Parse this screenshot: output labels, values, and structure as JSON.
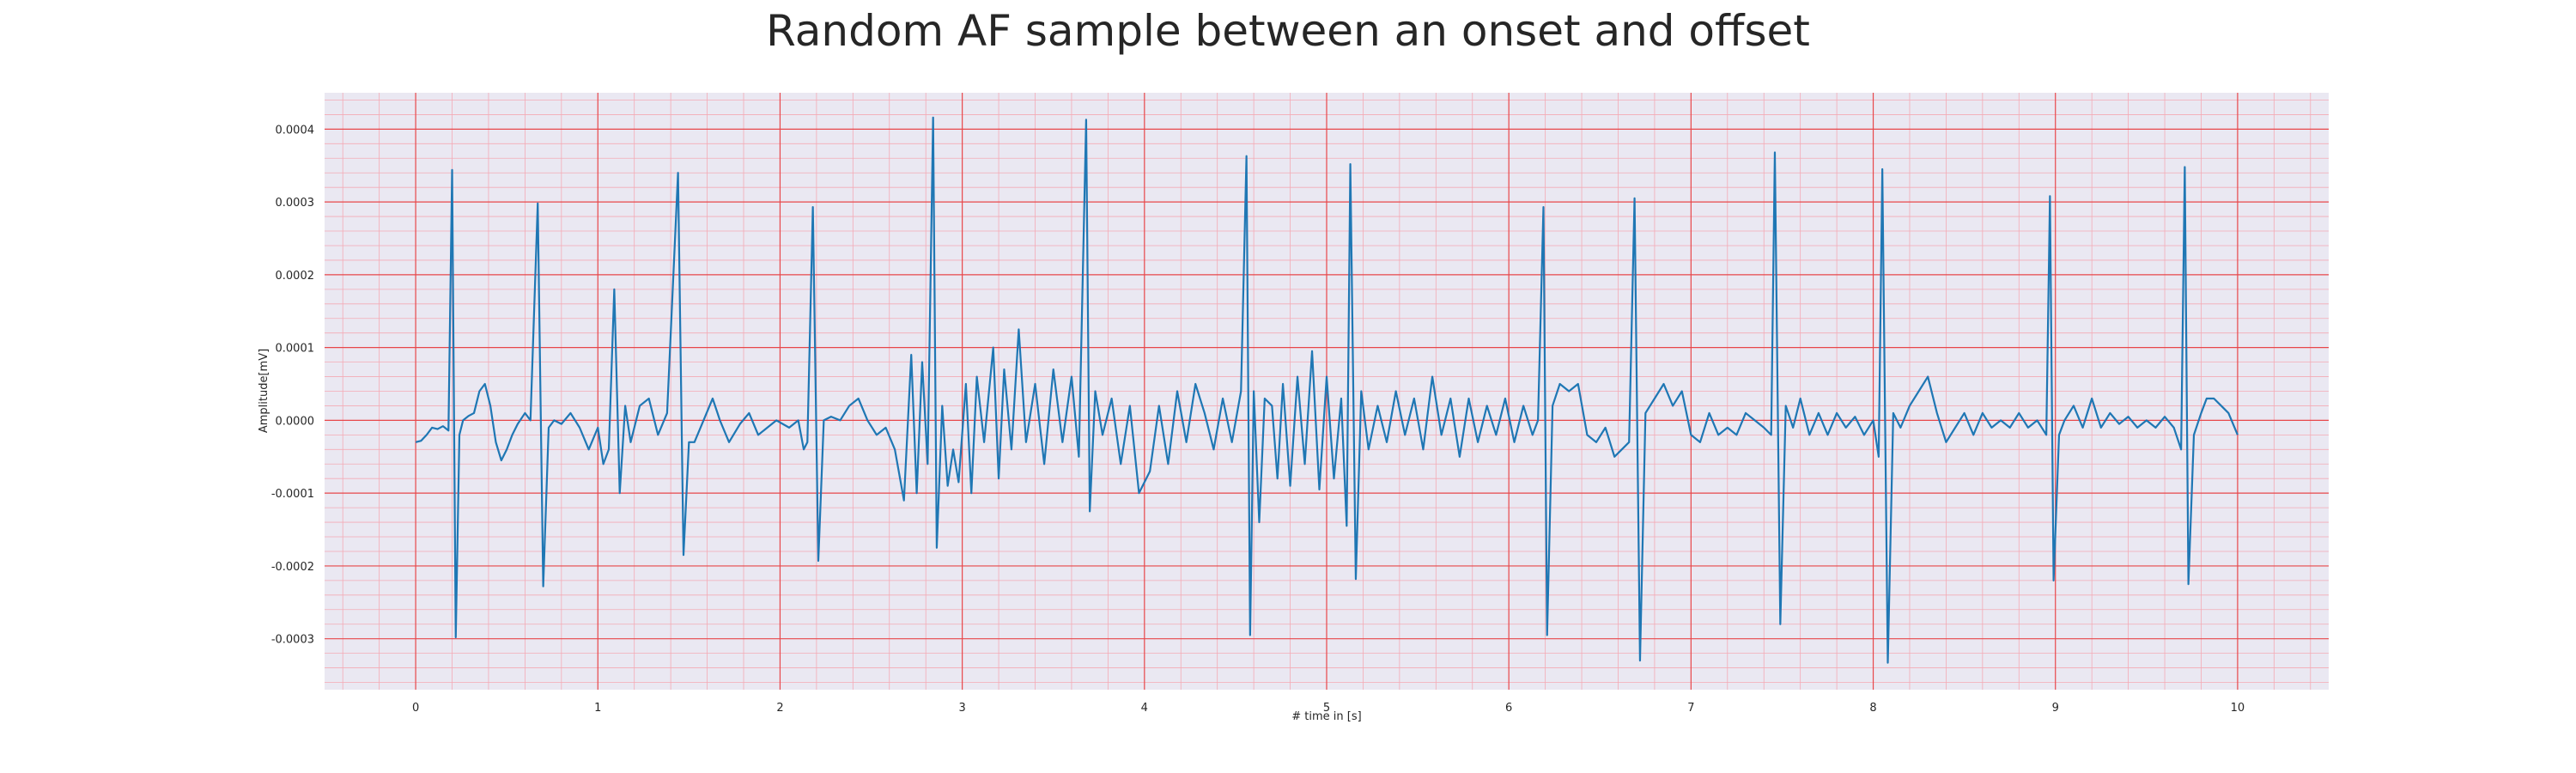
{
  "chart_data": {
    "type": "line",
    "title": "Random AF sample between an onset and offset",
    "xlabel": "# time in [s]",
    "ylabel": "Amplitude[mV]",
    "xlim": [
      -0.5,
      10.5
    ],
    "ylim": [
      -0.00037,
      0.00045
    ],
    "xticks": [
      0,
      1,
      2,
      3,
      4,
      5,
      6,
      7,
      8,
      9,
      10
    ],
    "xtick_labels": [
      "0",
      "1",
      "2",
      "3",
      "4",
      "5",
      "6",
      "7",
      "8",
      "9",
      "10"
    ],
    "yticks": [
      -0.0003,
      -0.0002,
      -0.0001,
      0.0,
      0.0001,
      0.0002,
      0.0003,
      0.0004
    ],
    "ytick_labels": [
      "-0.0003",
      "-0.0002",
      "-0.0001",
      "0.0000",
      "0.0001",
      "0.0002",
      "0.0003",
      "0.0004"
    ],
    "grid": true,
    "colors": {
      "line": "#1f77b4",
      "plot_background": "#eae8f2",
      "major_grid": "#e8474a",
      "minor_grid": "#f4aab5"
    },
    "series": [
      {
        "points": [
          [
            0.0,
            -3e-05
          ],
          [
            0.03,
            -2.8e-05
          ],
          [
            0.06,
            -2e-05
          ],
          [
            0.09,
            -1e-05
          ],
          [
            0.12,
            -1.2e-05
          ],
          [
            0.15,
            -8e-06
          ],
          [
            0.18,
            -1.4e-05
          ],
          [
            0.2,
            0.000344
          ],
          [
            0.22,
            -0.000298
          ],
          [
            0.24,
            -2e-05
          ],
          [
            0.26,
            0.0
          ],
          [
            0.29,
            6e-06
          ],
          [
            0.32,
            1e-05
          ],
          [
            0.35,
            4e-05
          ],
          [
            0.38,
            5e-05
          ],
          [
            0.41,
            2e-05
          ],
          [
            0.44,
            -3e-05
          ],
          [
            0.47,
            -5.5e-05
          ],
          [
            0.5,
            -4e-05
          ],
          [
            0.53,
            -2e-05
          ],
          [
            0.56,
            -5e-06
          ],
          [
            0.6,
            1e-05
          ],
          [
            0.63,
            0.0
          ],
          [
            0.67,
            0.000298
          ],
          [
            0.7,
            -0.000228
          ],
          [
            0.73,
            -1e-05
          ],
          [
            0.76,
            0.0
          ],
          [
            0.8,
            -5e-06
          ],
          [
            0.85,
            1e-05
          ],
          [
            0.9,
            -1e-05
          ],
          [
            0.95,
            -4e-05
          ],
          [
            1.0,
            -1e-05
          ],
          [
            1.03,
            -6e-05
          ],
          [
            1.06,
            -4e-05
          ],
          [
            1.09,
            0.00018
          ],
          [
            1.12,
            -0.0001
          ],
          [
            1.15,
            2e-05
          ],
          [
            1.18,
            -3e-05
          ],
          [
            1.23,
            2e-05
          ],
          [
            1.28,
            3e-05
          ],
          [
            1.33,
            -2e-05
          ],
          [
            1.38,
            1e-05
          ],
          [
            1.44,
            0.00034
          ],
          [
            1.47,
            -0.000185
          ],
          [
            1.5,
            -3e-05
          ],
          [
            1.53,
            -3e-05
          ],
          [
            1.58,
            0.0
          ],
          [
            1.63,
            3e-05
          ],
          [
            1.67,
            0.0
          ],
          [
            1.72,
            -3e-05
          ],
          [
            1.78,
            -5e-06
          ],
          [
            1.83,
            1e-05
          ],
          [
            1.88,
            -2e-05
          ],
          [
            1.93,
            -1e-05
          ],
          [
            1.98,
            0.0
          ],
          [
            2.05,
            -1e-05
          ],
          [
            2.1,
            0.0
          ],
          [
            2.13,
            -4e-05
          ],
          [
            2.15,
            -3e-05
          ],
          [
            2.18,
            0.000293
          ],
          [
            2.21,
            -0.000193
          ],
          [
            2.24,
            0.0
          ],
          [
            2.28,
            5e-06
          ],
          [
            2.33,
            0.0
          ],
          [
            2.38,
            2e-05
          ],
          [
            2.43,
            3e-05
          ],
          [
            2.48,
            0.0
          ],
          [
            2.53,
            -2e-05
          ],
          [
            2.58,
            -1e-05
          ],
          [
            2.63,
            -4e-05
          ],
          [
            2.68,
            -0.00011
          ],
          [
            2.72,
            9e-05
          ],
          [
            2.75,
            -0.0001
          ],
          [
            2.78,
            8e-05
          ],
          [
            2.81,
            -6e-05
          ],
          [
            2.84,
            0.000416
          ],
          [
            2.86,
            -0.000175
          ],
          [
            2.89,
            2e-05
          ],
          [
            2.92,
            -9e-05
          ],
          [
            2.95,
            -4e-05
          ],
          [
            2.98,
            -8.5e-05
          ],
          [
            3.02,
            5e-05
          ],
          [
            3.05,
            -0.0001
          ],
          [
            3.08,
            6e-05
          ],
          [
            3.12,
            -3e-05
          ],
          [
            3.17,
            0.0001
          ],
          [
            3.2,
            -8e-05
          ],
          [
            3.23,
            7e-05
          ],
          [
            3.27,
            -4e-05
          ],
          [
            3.31,
            0.000125
          ],
          [
            3.35,
            -3e-05
          ],
          [
            3.4,
            5e-05
          ],
          [
            3.45,
            -6e-05
          ],
          [
            3.5,
            7e-05
          ],
          [
            3.55,
            -3e-05
          ],
          [
            3.6,
            6e-05
          ],
          [
            3.64,
            -5e-05
          ],
          [
            3.68,
            0.000413
          ],
          [
            3.7,
            -0.000125
          ],
          [
            3.73,
            4e-05
          ],
          [
            3.77,
            -2e-05
          ],
          [
            3.82,
            3e-05
          ],
          [
            3.87,
            -6e-05
          ],
          [
            3.92,
            2e-05
          ],
          [
            3.97,
            -0.0001
          ],
          [
            4.03,
            -7e-05
          ],
          [
            4.08,
            2e-05
          ],
          [
            4.13,
            -6e-05
          ],
          [
            4.18,
            4e-05
          ],
          [
            4.23,
            -3e-05
          ],
          [
            4.28,
            5e-05
          ],
          [
            4.33,
            1e-05
          ],
          [
            4.38,
            -4e-05
          ],
          [
            4.43,
            3e-05
          ],
          [
            4.48,
            -3e-05
          ],
          [
            4.53,
            4e-05
          ],
          [
            4.56,
            0.000363
          ],
          [
            4.58,
            -0.000295
          ],
          [
            4.6,
            4e-05
          ],
          [
            4.63,
            -0.00014
          ],
          [
            4.66,
            3e-05
          ],
          [
            4.7,
            2e-05
          ],
          [
            4.73,
            -8e-05
          ],
          [
            4.76,
            5e-05
          ],
          [
            4.8,
            -9e-05
          ],
          [
            4.84,
            6e-05
          ],
          [
            4.88,
            -6e-05
          ],
          [
            4.92,
            9.5e-05
          ],
          [
            4.96,
            -9.5e-05
          ],
          [
            5.0,
            6e-05
          ],
          [
            5.04,
            -8e-05
          ],
          [
            5.08,
            3e-05
          ],
          [
            5.11,
            -0.000145
          ],
          [
            5.13,
            0.000352
          ],
          [
            5.16,
            -0.000218
          ],
          [
            5.19,
            4e-05
          ],
          [
            5.23,
            -4e-05
          ],
          [
            5.28,
            2e-05
          ],
          [
            5.33,
            -3e-05
          ],
          [
            5.38,
            4e-05
          ],
          [
            5.43,
            -2e-05
          ],
          [
            5.48,
            3e-05
          ],
          [
            5.53,
            -4e-05
          ],
          [
            5.58,
            6e-05
          ],
          [
            5.63,
            -2e-05
          ],
          [
            5.68,
            3e-05
          ],
          [
            5.73,
            -5e-05
          ],
          [
            5.78,
            3e-05
          ],
          [
            5.83,
            -3e-05
          ],
          [
            5.88,
            2e-05
          ],
          [
            5.93,
            -2e-05
          ],
          [
            5.98,
            3e-05
          ],
          [
            6.03,
            -3e-05
          ],
          [
            6.08,
            2e-05
          ],
          [
            6.13,
            -2e-05
          ],
          [
            6.16,
            0.0
          ],
          [
            6.19,
            0.000293
          ],
          [
            6.21,
            -0.000295
          ],
          [
            6.24,
            2e-05
          ],
          [
            6.28,
            5e-05
          ],
          [
            6.33,
            4e-05
          ],
          [
            6.38,
            5e-05
          ],
          [
            6.43,
            -2e-05
          ],
          [
            6.48,
            -3e-05
          ],
          [
            6.53,
            -1e-05
          ],
          [
            6.58,
            -5e-05
          ],
          [
            6.62,
            -4e-05
          ],
          [
            6.66,
            -3e-05
          ],
          [
            6.69,
            0.000305
          ],
          [
            6.72,
            -0.00033
          ],
          [
            6.75,
            1e-05
          ],
          [
            6.8,
            3e-05
          ],
          [
            6.85,
            5e-05
          ],
          [
            6.9,
            2e-05
          ],
          [
            6.95,
            4e-05
          ],
          [
            7.0,
            -2e-05
          ],
          [
            7.05,
            -3e-05
          ],
          [
            7.1,
            1e-05
          ],
          [
            7.15,
            -2e-05
          ],
          [
            7.2,
            -1e-05
          ],
          [
            7.25,
            -2e-05
          ],
          [
            7.3,
            1e-05
          ],
          [
            7.35,
            0.0
          ],
          [
            7.4,
            -1e-05
          ],
          [
            7.44,
            -2e-05
          ],
          [
            7.46,
            0.000368
          ],
          [
            7.49,
            -0.00028
          ],
          [
            7.52,
            2e-05
          ],
          [
            7.56,
            -1e-05
          ],
          [
            7.6,
            3e-05
          ],
          [
            7.65,
            -2e-05
          ],
          [
            7.7,
            1e-05
          ],
          [
            7.75,
            -2e-05
          ],
          [
            7.8,
            1e-05
          ],
          [
            7.85,
            -1e-05
          ],
          [
            7.9,
            5e-06
          ],
          [
            7.95,
            -2e-05
          ],
          [
            8.0,
            0.0
          ],
          [
            8.03,
            -5e-05
          ],
          [
            8.05,
            0.000345
          ],
          [
            8.08,
            -0.000333
          ],
          [
            8.11,
            1e-05
          ],
          [
            8.15,
            -1e-05
          ],
          [
            8.2,
            2e-05
          ],
          [
            8.25,
            4e-05
          ],
          [
            8.3,
            6e-05
          ],
          [
            8.35,
            1e-05
          ],
          [
            8.4,
            -3e-05
          ],
          [
            8.45,
            -1e-05
          ],
          [
            8.5,
            1e-05
          ],
          [
            8.55,
            -2e-05
          ],
          [
            8.6,
            1e-05
          ],
          [
            8.65,
            -1e-05
          ],
          [
            8.7,
            0.0
          ],
          [
            8.75,
            -1e-05
          ],
          [
            8.8,
            1e-05
          ],
          [
            8.85,
            -1e-05
          ],
          [
            8.9,
            0.0
          ],
          [
            8.95,
            -2e-05
          ],
          [
            8.97,
            0.000308
          ],
          [
            8.99,
            -0.00022
          ],
          [
            9.02,
            -2e-05
          ],
          [
            9.05,
            0.0
          ],
          [
            9.1,
            2e-05
          ],
          [
            9.15,
            -1e-05
          ],
          [
            9.2,
            3e-05
          ],
          [
            9.25,
            -1e-05
          ],
          [
            9.3,
            1e-05
          ],
          [
            9.35,
            -5e-06
          ],
          [
            9.4,
            5e-06
          ],
          [
            9.45,
            -1e-05
          ],
          [
            9.5,
            0.0
          ],
          [
            9.55,
            -1e-05
          ],
          [
            9.6,
            5e-06
          ],
          [
            9.65,
            -1e-05
          ],
          [
            9.69,
            -4e-05
          ],
          [
            9.71,
            0.000348
          ],
          [
            9.73,
            -0.000225
          ],
          [
            9.76,
            -2e-05
          ],
          [
            9.8,
            1e-05
          ],
          [
            9.83,
            3e-05
          ],
          [
            9.87,
            3e-05
          ],
          [
            9.91,
            2e-05
          ],
          [
            9.95,
            1e-05
          ],
          [
            10.0,
            -2e-05
          ]
        ]
      }
    ]
  }
}
